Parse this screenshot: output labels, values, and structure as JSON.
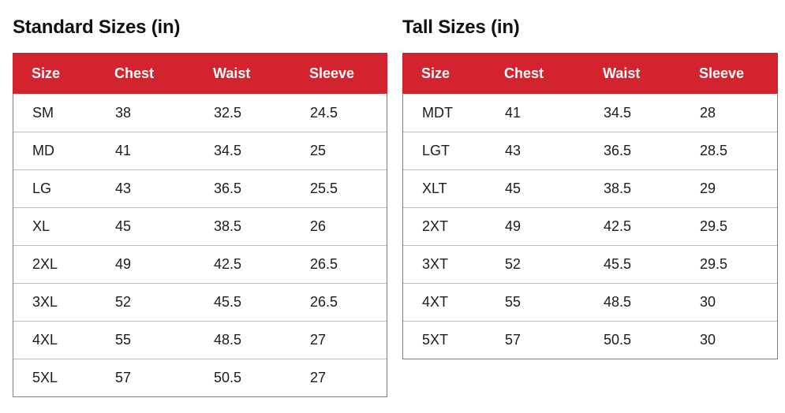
{
  "colors": {
    "header_background": "#d2232e",
    "header_text": "#ffffff",
    "outer_border": "#7d7d7d",
    "row_divider": "#bdbdbd",
    "title_text": "#111111",
    "cell_text": "#1c1c1c",
    "page_background": "#ffffff"
  },
  "tables": [
    {
      "title": "Standard Sizes (in)",
      "columns": [
        "Size",
        "Chest",
        "Waist",
        "Sleeve"
      ],
      "rows": [
        [
          "SM",
          "38",
          "32.5",
          "24.5"
        ],
        [
          "MD",
          "41",
          "34.5",
          "25"
        ],
        [
          "LG",
          "43",
          "36.5",
          "25.5"
        ],
        [
          "XL",
          "45",
          "38.5",
          "26"
        ],
        [
          "2XL",
          "49",
          "42.5",
          "26.5"
        ],
        [
          "3XL",
          "52",
          "45.5",
          "26.5"
        ],
        [
          "4XL",
          "55",
          "48.5",
          "27"
        ],
        [
          "5XL",
          "57",
          "50.5",
          "27"
        ]
      ]
    },
    {
      "title": "Tall Sizes (in)",
      "columns": [
        "Size",
        "Chest",
        "Waist",
        "Sleeve"
      ],
      "rows": [
        [
          "MDT",
          "41",
          "34.5",
          "28"
        ],
        [
          "LGT",
          "43",
          "36.5",
          "28.5"
        ],
        [
          "XLT",
          "45",
          "38.5",
          "29"
        ],
        [
          "2XT",
          "49",
          "42.5",
          "29.5"
        ],
        [
          "3XT",
          "52",
          "45.5",
          "29.5"
        ],
        [
          "4XT",
          "55",
          "48.5",
          "30"
        ],
        [
          "5XT",
          "57",
          "50.5",
          "30"
        ]
      ]
    }
  ]
}
